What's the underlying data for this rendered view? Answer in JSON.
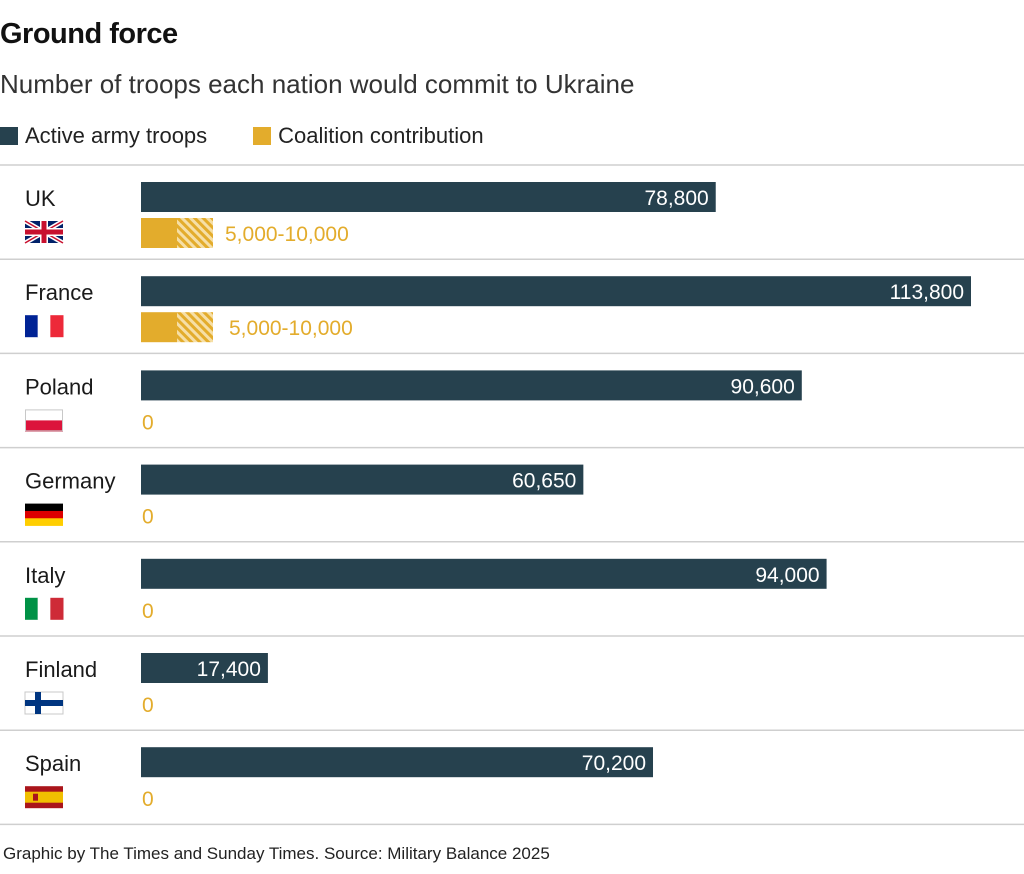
{
  "header": {
    "title": "Ground force",
    "subtitle": "Number of troops each nation would commit to Ukraine"
  },
  "legend": [
    {
      "label": "Active army troops",
      "color": "#26414e"
    },
    {
      "label": "Coalition contribution",
      "color": "#e3ac2c"
    }
  ],
  "footer": {
    "source": "Graphic by The Times and Sunday Times. Source: Military Balance 2025"
  },
  "chart_data": {
    "type": "bar",
    "orientation": "horizontal",
    "title": "Ground force",
    "subtitle": "Number of troops each nation would commit to Ukraine",
    "categories": [
      "UK",
      "France",
      "Poland",
      "Germany",
      "Italy",
      "Finland",
      "Spain"
    ],
    "flags": [
      "flag-uk",
      "flag-france",
      "flag-poland",
      "flag-germany",
      "flag-italy",
      "flag-finland",
      "flag-spain"
    ],
    "xlim": [
      0,
      113800
    ],
    "series": [
      {
        "name": "Active army troops",
        "color": "#26414e",
        "values": [
          78800,
          113800,
          90600,
          60650,
          94000,
          17400,
          70200
        ],
        "labels": [
          "78,800",
          "113,800",
          "90,600",
          "60,650",
          "94,000",
          "17,400",
          "70,200"
        ]
      },
      {
        "name": "Coalition contribution",
        "color": "#e3ac2c",
        "values_min": [
          5000,
          5000,
          0,
          0,
          0,
          0,
          0
        ],
        "values_max": [
          10000,
          10000,
          0,
          0,
          0,
          0,
          0
        ],
        "labels": [
          "5,000-10,000",
          "5,000-10,000",
          "0",
          "0",
          "0",
          "0",
          "0"
        ]
      }
    ]
  }
}
